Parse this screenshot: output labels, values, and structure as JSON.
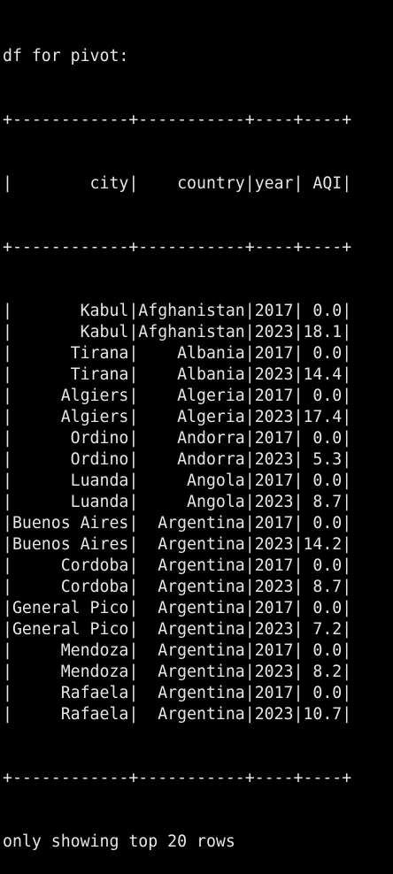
{
  "header": "df for pivot:",
  "border": "+------------+-----------+----+----+",
  "column_header": "|        city|    country|year| AQI|",
  "columns": [
    "city",
    "country",
    "year",
    "AQI"
  ],
  "rows": [
    {
      "city": "Kabul",
      "country": "Afghanistan",
      "year": "2017",
      "aqi": "0.0"
    },
    {
      "city": "Kabul",
      "country": "Afghanistan",
      "year": "2023",
      "aqi": "18.1"
    },
    {
      "city": "Tirana",
      "country": "Albania",
      "year": "2017",
      "aqi": "0.0"
    },
    {
      "city": "Tirana",
      "country": "Albania",
      "year": "2023",
      "aqi": "14.4"
    },
    {
      "city": "Algiers",
      "country": "Algeria",
      "year": "2017",
      "aqi": "0.0"
    },
    {
      "city": "Algiers",
      "country": "Algeria",
      "year": "2023",
      "aqi": "17.4"
    },
    {
      "city": "Ordino",
      "country": "Andorra",
      "year": "2017",
      "aqi": "0.0"
    },
    {
      "city": "Ordino",
      "country": "Andorra",
      "year": "2023",
      "aqi": "5.3"
    },
    {
      "city": "Luanda",
      "country": "Angola",
      "year": "2017",
      "aqi": "0.0"
    },
    {
      "city": "Luanda",
      "country": "Angola",
      "year": "2023",
      "aqi": "8.7"
    },
    {
      "city": "Buenos Aires",
      "country": "Argentina",
      "year": "2017",
      "aqi": "0.0"
    },
    {
      "city": "Buenos Aires",
      "country": "Argentina",
      "year": "2023",
      "aqi": "14.2"
    },
    {
      "city": "Cordoba",
      "country": "Argentina",
      "year": "2017",
      "aqi": "0.0"
    },
    {
      "city": "Cordoba",
      "country": "Argentina",
      "year": "2023",
      "aqi": "8.7"
    },
    {
      "city": "General Pico",
      "country": "Argentina",
      "year": "2017",
      "aqi": "0.0"
    },
    {
      "city": "General Pico",
      "country": "Argentina",
      "year": "2023",
      "aqi": "7.2"
    },
    {
      "city": "Mendoza",
      "country": "Argentina",
      "year": "2017",
      "aqi": "0.0"
    },
    {
      "city": "Mendoza",
      "country": "Argentina",
      "year": "2023",
      "aqi": "8.2"
    },
    {
      "city": "Rafaela",
      "country": "Argentina",
      "year": "2017",
      "aqi": "0.0"
    },
    {
      "city": "Rafaela",
      "country": "Argentina",
      "year": "2023",
      "aqi": "10.7"
    }
  ],
  "footer": "only showing top 20 rows",
  "colors": {
    "background": "#000000",
    "text": "#e6e6e6"
  }
}
